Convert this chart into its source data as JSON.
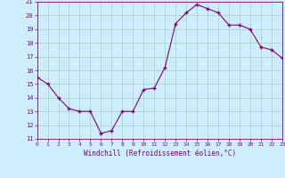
{
  "x": [
    0,
    1,
    2,
    3,
    4,
    5,
    6,
    7,
    8,
    9,
    10,
    11,
    12,
    13,
    14,
    15,
    16,
    17,
    18,
    19,
    20,
    21,
    22,
    23
  ],
  "y": [
    15.5,
    15.0,
    14.0,
    13.2,
    13.0,
    13.0,
    11.4,
    11.6,
    13.0,
    13.0,
    14.6,
    14.7,
    16.2,
    19.4,
    20.2,
    20.8,
    20.5,
    20.2,
    19.3,
    19.3,
    19.0,
    17.7,
    17.5,
    16.9
  ],
  "line_color": "#800080",
  "bg_color": "#cceeff",
  "grid_color": "#aaccbb",
  "xlabel": "Windchill (Refroidissement éolien,°C)",
  "ylim": [
    11,
    21
  ],
  "xlim": [
    0,
    23
  ],
  "yticks": [
    11,
    12,
    13,
    14,
    15,
    16,
    17,
    18,
    19,
    20,
    21
  ],
  "xticks": [
    0,
    1,
    2,
    3,
    4,
    5,
    6,
    7,
    8,
    9,
    10,
    11,
    12,
    13,
    14,
    15,
    16,
    17,
    18,
    19,
    20,
    21,
    22,
    23
  ]
}
